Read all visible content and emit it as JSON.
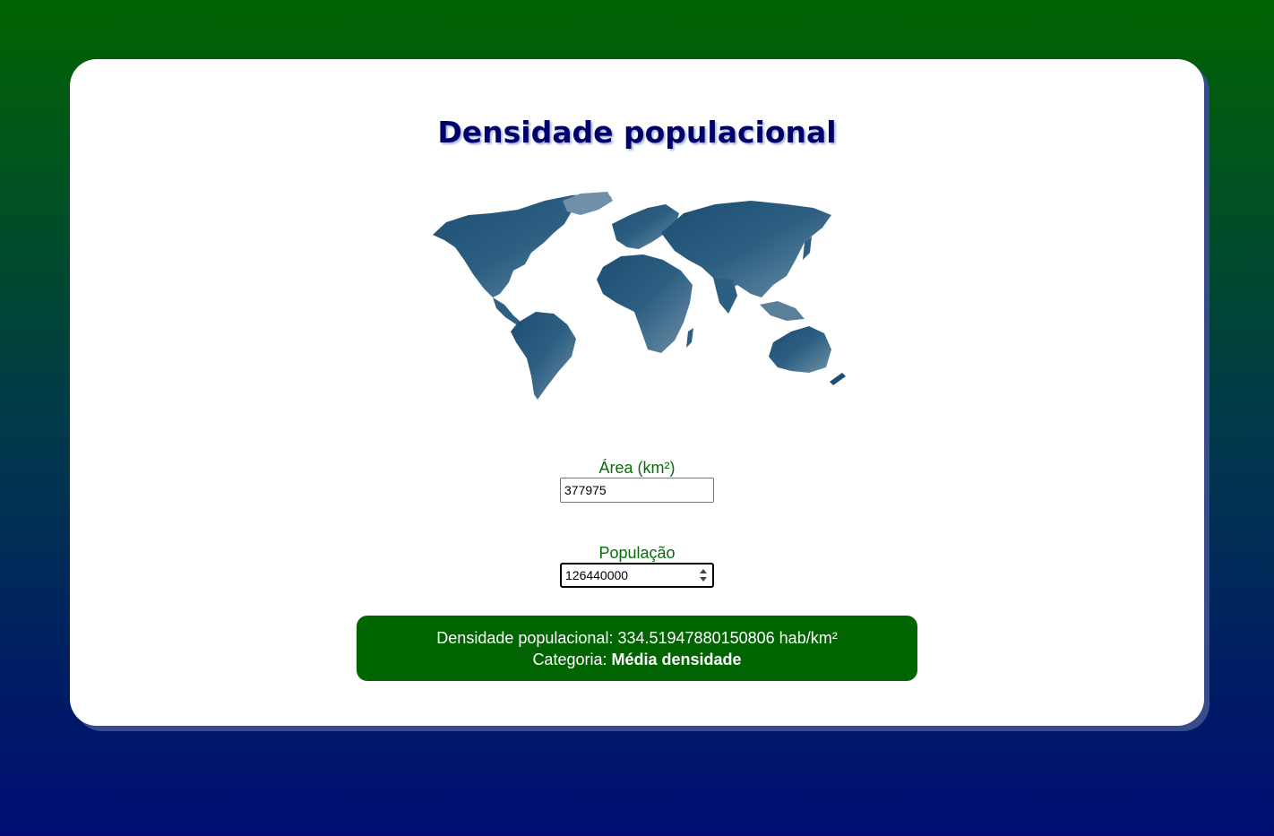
{
  "page": {
    "title": "Densidade populacional"
  },
  "map": {
    "icon": "world-map-icon",
    "fill_colors": [
      "#1d4e72",
      "#2d5f82",
      "#5a7f99",
      "#8fa9bd"
    ]
  },
  "form": {
    "area": {
      "label": "Área (km²)",
      "value": "377975"
    },
    "population": {
      "label": "População",
      "value": "126440000"
    }
  },
  "result": {
    "density_prefix": "Densidade populacional:",
    "density_value": "334.51947880150806",
    "density_unit": "hab/km²",
    "category_prefix": "Categoria:",
    "category_value": "Média densidade"
  },
  "colors": {
    "background_top": "#006400",
    "background_bottom": "#000c74",
    "title": "#00006b",
    "label": "#0b6a0b",
    "result_bg": "#006400",
    "card_shadow": "#3a4b8a"
  }
}
